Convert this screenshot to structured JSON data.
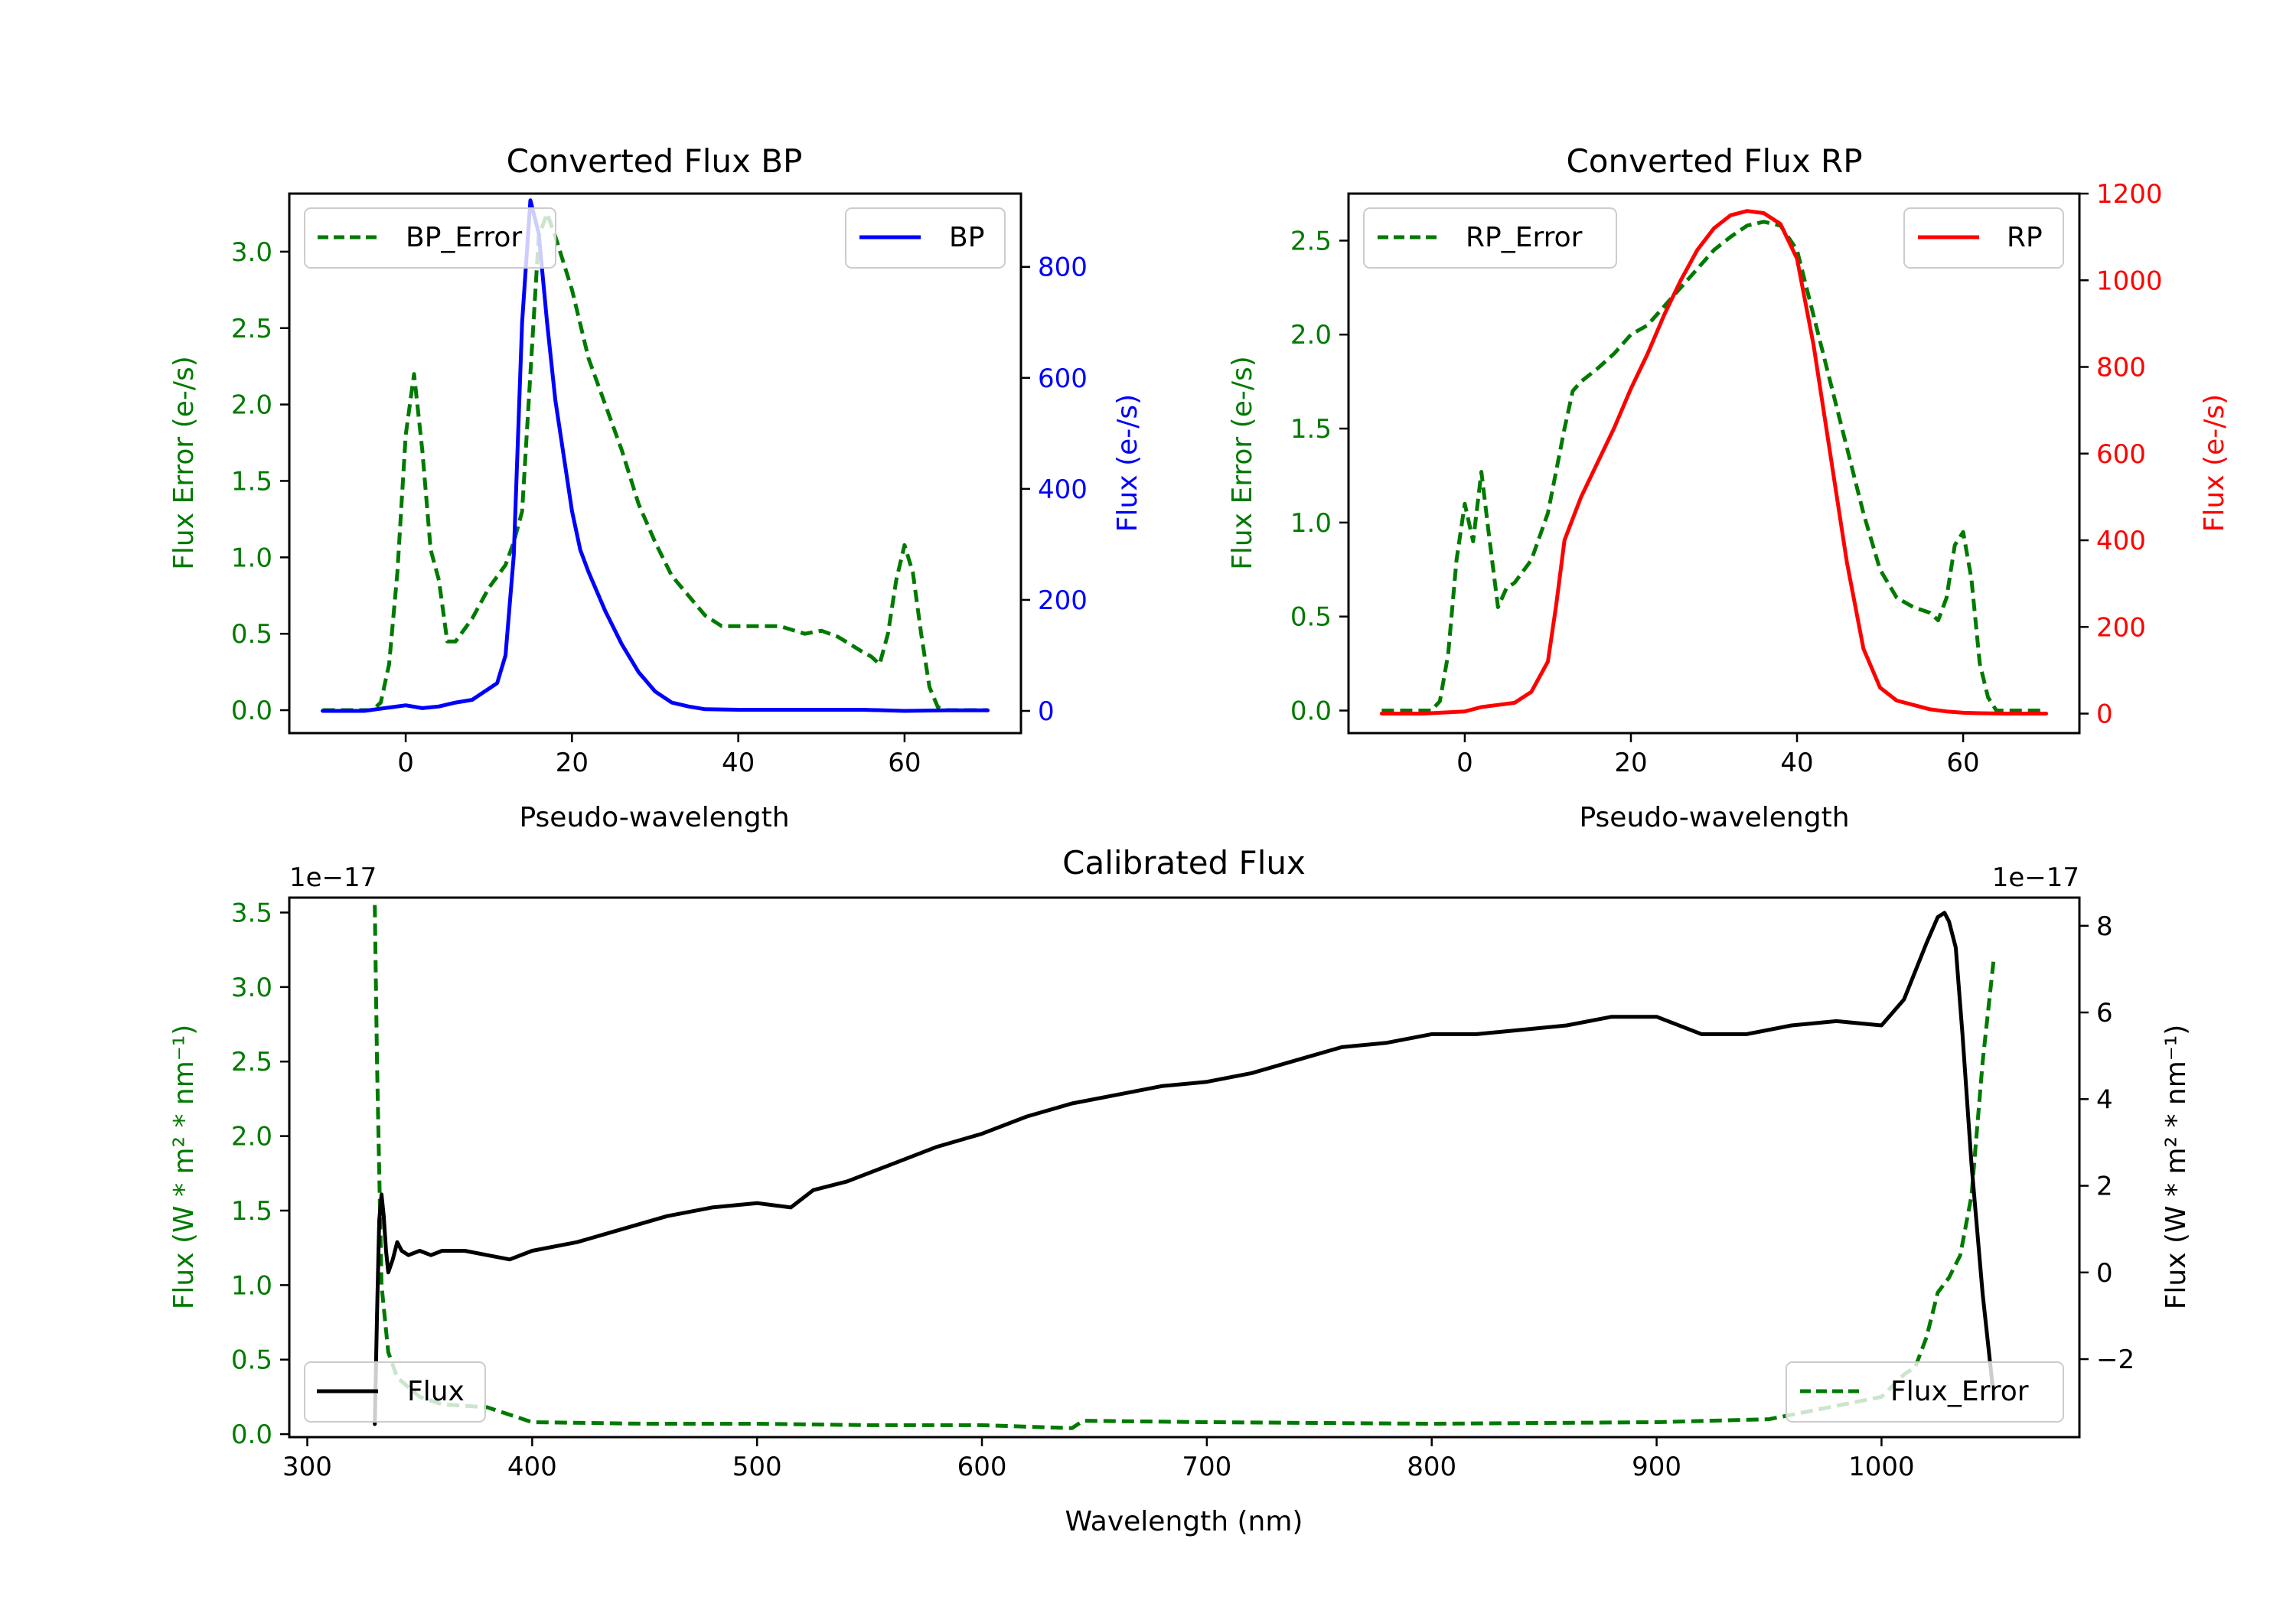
{
  "colors": {
    "green": "#007a00",
    "blue": "#0000ff",
    "red": "#ff0000",
    "black": "#000000"
  },
  "chart_data": [
    {
      "id": "bp",
      "type": "line",
      "title": "Converted Flux BP",
      "xlabel": "Pseudo-wavelength",
      "ylabel_left": "Flux Error (e-/s)",
      "ylabel_right": "Flux (e-/s)",
      "xlim": [
        -14,
        74
      ],
      "ylim_left": [
        -0.15,
        3.38
      ],
      "ylim_right": [
        -40,
        932
      ],
      "xticks": [
        0,
        20,
        40,
        60
      ],
      "yticks_left": [
        0.0,
        0.5,
        1.0,
        1.5,
        2.0,
        2.5,
        3.0
      ],
      "yticks_right": [
        0,
        200,
        400,
        600,
        800
      ],
      "left_tick_labels": [
        "0.0",
        "0.5",
        "1.0",
        "1.5",
        "2.0",
        "2.5",
        "3.0"
      ],
      "right_tick_labels": [
        "0",
        "200",
        "400",
        "600",
        "800"
      ],
      "x_tick_labels": [
        "0",
        "20",
        "40",
        "60"
      ],
      "legend_left": "BP_Error",
      "legend_right": "BP",
      "series": [
        {
          "name": "BP_Error",
          "axis": "left",
          "color": "#007a00",
          "style": "dashed",
          "x": [
            -10,
            -4,
            -3,
            -2,
            -1,
            0,
            1,
            2,
            3,
            4,
            5,
            6,
            8,
            10,
            12,
            13,
            14,
            15,
            16,
            17,
            18,
            20,
            22,
            24,
            26,
            28,
            30,
            32,
            34,
            36,
            38,
            40,
            45,
            48,
            50,
            52,
            55,
            56,
            57,
            58,
            59,
            60,
            61,
            62,
            63,
            64,
            65,
            70
          ],
          "y": [
            0,
            0,
            0.05,
            0.3,
            0.9,
            1.8,
            2.2,
            1.7,
            1.05,
            0.85,
            0.45,
            0.45,
            0.6,
            0.8,
            0.95,
            1.1,
            1.3,
            2.2,
            3.1,
            3.25,
            3.1,
            2.75,
            2.3,
            2.0,
            1.7,
            1.35,
            1.1,
            0.88,
            0.75,
            0.62,
            0.55,
            0.55,
            0.55,
            0.5,
            0.52,
            0.48,
            0.38,
            0.35,
            0.3,
            0.5,
            0.85,
            1.08,
            0.9,
            0.5,
            0.15,
            0.02,
            0,
            0
          ]
        },
        {
          "name": "BP",
          "axis": "right",
          "color": "#0000ff",
          "style": "solid",
          "x": [
            -10,
            -5,
            0,
            2,
            4,
            6,
            8,
            10,
            11,
            12,
            13,
            14,
            15,
            16,
            17,
            18,
            19,
            20,
            21,
            22,
            24,
            26,
            28,
            30,
            32,
            34,
            36,
            40,
            45,
            50,
            55,
            60,
            65,
            70
          ],
          "y": [
            0,
            0,
            10,
            5,
            8,
            15,
            20,
            40,
            50,
            100,
            280,
            700,
            920,
            860,
            700,
            560,
            460,
            360,
            290,
            250,
            180,
            120,
            70,
            35,
            15,
            8,
            3,
            2,
            2,
            2,
            2,
            0,
            1,
            1
          ]
        }
      ]
    },
    {
      "id": "rp",
      "type": "line",
      "title": "Converted Flux RP",
      "xlabel": "Pseudo-wavelength",
      "ylabel_left": "Flux Error (e-/s)",
      "ylabel_right": "Flux (e-/s)",
      "xlim": [
        -14,
        74
      ],
      "ylim_left": [
        -0.12,
        2.75
      ],
      "ylim_right": [
        -45,
        1200
      ],
      "xticks": [
        0,
        20,
        40,
        60
      ],
      "yticks_left": [
        0.0,
        0.5,
        1.0,
        1.5,
        2.0,
        2.5
      ],
      "yticks_right": [
        0,
        200,
        400,
        600,
        800,
        1000,
        1200
      ],
      "left_tick_labels": [
        "0.0",
        "0.5",
        "1.0",
        "1.5",
        "2.0",
        "2.5"
      ],
      "right_tick_labels": [
        "0",
        "200",
        "400",
        "600",
        "800",
        "1000",
        "1200"
      ],
      "x_tick_labels": [
        "0",
        "20",
        "40",
        "60"
      ],
      "legend_left": "RP_Error",
      "legend_right": "RP",
      "series": [
        {
          "name": "RP_Error",
          "axis": "left",
          "color": "#007a00",
          "style": "dashed",
          "x": [
            -10,
            -4,
            -3,
            -2,
            -1,
            0,
            1,
            2,
            3,
            4,
            5,
            6,
            8,
            10,
            12,
            13,
            14,
            16,
            18,
            20,
            22,
            25,
            28,
            30,
            32,
            34,
            36,
            38,
            40,
            42,
            44,
            46,
            48,
            50,
            52,
            54,
            56,
            57,
            58,
            59,
            60,
            61,
            62,
            63,
            64,
            70
          ],
          "y": [
            0,
            0,
            0.05,
            0.3,
            0.8,
            1.1,
            0.9,
            1.27,
            0.9,
            0.55,
            0.65,
            0.68,
            0.8,
            1.05,
            1.5,
            1.7,
            1.75,
            1.82,
            1.9,
            2.0,
            2.05,
            2.2,
            2.35,
            2.45,
            2.52,
            2.58,
            2.6,
            2.58,
            2.45,
            2.1,
            1.75,
            1.4,
            1.05,
            0.75,
            0.6,
            0.55,
            0.52,
            0.48,
            0.6,
            0.88,
            0.95,
            0.7,
            0.25,
            0.07,
            0,
            0
          ]
        },
        {
          "name": "RP",
          "axis": "right",
          "color": "#ff0000",
          "style": "solid",
          "x": [
            -10,
            -5,
            0,
            2,
            4,
            6,
            8,
            10,
            11,
            12,
            13,
            14,
            16,
            18,
            20,
            22,
            24,
            26,
            28,
            30,
            32,
            34,
            36,
            38,
            40,
            42,
            44,
            46,
            48,
            50,
            52,
            54,
            56,
            58,
            60,
            62,
            65,
            70
          ],
          "y": [
            0,
            0,
            5,
            15,
            20,
            25,
            50,
            120,
            250,
            400,
            450,
            500,
            580,
            660,
            750,
            830,
            920,
            1000,
            1070,
            1120,
            1150,
            1160,
            1155,
            1130,
            1050,
            850,
            600,
            350,
            150,
            60,
            30,
            20,
            10,
            5,
            2,
            1,
            0,
            0
          ]
        }
      ]
    },
    {
      "id": "calibrated",
      "type": "line",
      "title": "Calibrated Flux",
      "xlabel": "Wavelength (nm)",
      "ylabel_left": "Flux (W * m² * nm⁻¹)",
      "ylabel_right": "Flux (W * m² * nm⁻¹)",
      "offset_left": "1e−17",
      "offset_right": "1e−17",
      "xlim": [
        292,
        1088
      ],
      "ylim_left": [
        -0.02,
        3.6
      ],
      "ylim_right": [
        -3.8,
        8.65
      ],
      "xticks": [
        300,
        400,
        500,
        600,
        700,
        800,
        900,
        1000
      ],
      "yticks_left": [
        0.0,
        0.5,
        1.0,
        1.5,
        2.0,
        2.5,
        3.0,
        3.5
      ],
      "yticks_right": [
        -2,
        0,
        2,
        4,
        6,
        8
      ],
      "left_tick_labels": [
        "0.0",
        "0.5",
        "1.0",
        "1.5",
        "2.0",
        "2.5",
        "3.0",
        "3.5"
      ],
      "right_tick_labels": [
        "−2",
        "0",
        "2",
        "4",
        "6",
        "8"
      ],
      "x_tick_labels": [
        "300",
        "400",
        "500",
        "600",
        "700",
        "800",
        "900",
        "1000"
      ],
      "legend_left": "Flux",
      "legend_right": "Flux_Error",
      "series": [
        {
          "name": "Flux_Error",
          "axis": "left",
          "color": "#007a00",
          "style": "dashed",
          "x": [
            330,
            331,
            333,
            336,
            340,
            350,
            360,
            380,
            390,
            400,
            450,
            500,
            550,
            600,
            640,
            645,
            700,
            800,
            900,
            950,
            1000,
            1010,
            1015,
            1020,
            1025,
            1030,
            1035,
            1040,
            1045,
            1050
          ],
          "y": [
            3.55,
            2.5,
            1.0,
            0.55,
            0.38,
            0.25,
            0.2,
            0.18,
            0.13,
            0.08,
            0.07,
            0.07,
            0.06,
            0.06,
            0.04,
            0.09,
            0.08,
            0.07,
            0.08,
            0.1,
            0.25,
            0.4,
            0.45,
            0.65,
            0.95,
            1.05,
            1.2,
            1.6,
            2.5,
            3.2
          ]
        },
        {
          "name": "Flux",
          "axis": "right",
          "color": "#000000",
          "style": "solid",
          "x": [
            330,
            331,
            332,
            333,
            334,
            335,
            336,
            338,
            340,
            342,
            345,
            350,
            355,
            360,
            370,
            380,
            390,
            400,
            420,
            440,
            460,
            480,
            500,
            515,
            525,
            540,
            560,
            580,
            600,
            620,
            640,
            660,
            680,
            700,
            720,
            740,
            760,
            780,
            800,
            820,
            840,
            860,
            880,
            900,
            920,
            940,
            960,
            980,
            1000,
            1010,
            1020,
            1025,
            1028,
            1030,
            1033,
            1036,
            1040,
            1045,
            1050
          ],
          "y": [
            -3.5,
            -1,
            1.2,
            1.8,
            1.3,
            0.5,
            0,
            0.3,
            0.7,
            0.5,
            0.4,
            0.5,
            0.4,
            0.5,
            0.5,
            0.4,
            0.3,
            0.5,
            0.7,
            1.0,
            1.3,
            1.5,
            1.6,
            1.5,
            1.9,
            2.1,
            2.5,
            2.9,
            3.2,
            3.6,
            3.9,
            4.1,
            4.3,
            4.4,
            4.6,
            4.9,
            5.2,
            5.3,
            5.5,
            5.5,
            5.6,
            5.7,
            5.9,
            5.9,
            5.5,
            5.5,
            5.7,
            5.8,
            5.7,
            6.3,
            7.6,
            8.2,
            8.3,
            8.1,
            7.5,
            5.5,
            2.5,
            -0.5,
            -2.9
          ]
        }
      ]
    }
  ]
}
